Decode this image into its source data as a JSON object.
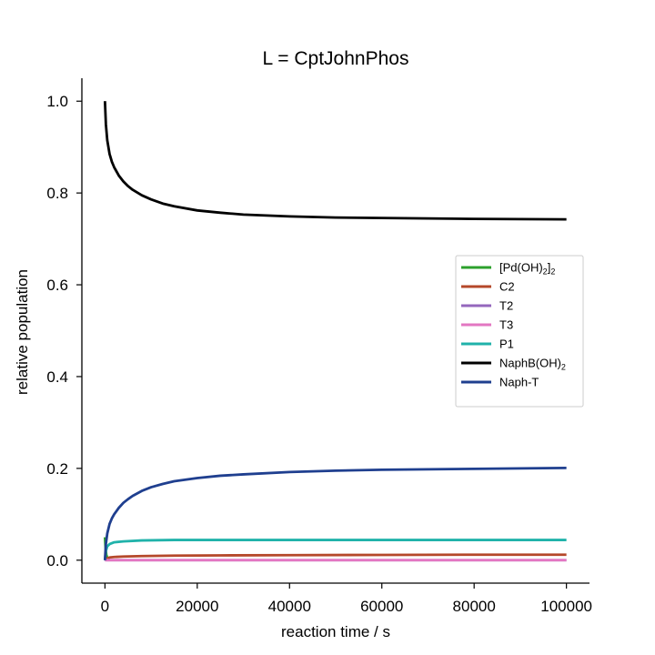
{
  "chart_data": {
    "type": "line",
    "title": "L = CptJohnPhos",
    "xlabel": "reaction time / s",
    "ylabel": "relative population",
    "xlim": [
      -5000,
      105000
    ],
    "ylim": [
      -0.05,
      1.05
    ],
    "xticks": [
      0,
      20000,
      40000,
      60000,
      80000,
      100000
    ],
    "yticks": [
      0.0,
      0.2,
      0.4,
      0.6,
      0.8,
      1.0
    ],
    "xtick_labels": [
      "0",
      "20000",
      "40000",
      "60000",
      "80000",
      "100000"
    ],
    "ytick_labels": [
      "0.0",
      "0.2",
      "0.4",
      "0.6",
      "0.8",
      "1.0"
    ],
    "grid": false,
    "legend_position": "center-right",
    "legend_entries": [
      {
        "label": "[Pd(OH)",
        "sub1": "2",
        "mid": "]",
        "sub2": "2"
      },
      {
        "label": "C2"
      },
      {
        "label": "T2"
      },
      {
        "label": "T3"
      },
      {
        "label": "P1"
      },
      {
        "label": "NaphB(OH)",
        "sub1": "2"
      },
      {
        "label": "Naph-T"
      }
    ],
    "series": [
      {
        "name": "[Pd(OH)2]2",
        "color": "#2ca02c",
        "x": [
          0,
          100,
          200,
          300,
          500,
          700,
          1000
        ],
        "y": [
          0.05,
          0.032,
          0.02,
          0.012,
          0.005,
          0.002,
          0.0
        ]
      },
      {
        "name": "C2",
        "color": "#b5482a",
        "x": [
          0,
          500,
          1000,
          2000,
          4000,
          8000,
          15000,
          25000,
          40000,
          60000,
          80000,
          100000
        ],
        "y": [
          0.0,
          0.004,
          0.006,
          0.007,
          0.008,
          0.009,
          0.01,
          0.0105,
          0.011,
          0.0115,
          0.012,
          0.012
        ]
      },
      {
        "name": "T2",
        "color": "#9467bd",
        "x": [
          0,
          100000
        ],
        "y": [
          0.0,
          0.0
        ]
      },
      {
        "name": "T3",
        "color": "#e377c2",
        "x": [
          0,
          100000
        ],
        "y": [
          0.0,
          0.0
        ]
      },
      {
        "name": "P1",
        "color": "#20b2aa",
        "x": [
          0,
          200,
          500,
          1000,
          2000,
          4000,
          8000,
          15000,
          25000,
          40000,
          60000,
          80000,
          100000
        ],
        "y": [
          0.0,
          0.02,
          0.03,
          0.035,
          0.039,
          0.041,
          0.043,
          0.044,
          0.044,
          0.044,
          0.044,
          0.044,
          0.044
        ]
      },
      {
        "name": "NaphB(OH)2",
        "color": "#000000",
        "x": [
          0,
          200,
          500,
          1000,
          1500,
          2000,
          3000,
          4000,
          5000,
          6000,
          8000,
          10000,
          12500,
          15000,
          20000,
          25000,
          30000,
          40000,
          50000,
          60000,
          70000,
          80000,
          90000,
          100000
        ],
        "y": [
          1.0,
          0.95,
          0.915,
          0.885,
          0.868,
          0.856,
          0.838,
          0.825,
          0.815,
          0.807,
          0.795,
          0.786,
          0.777,
          0.771,
          0.762,
          0.757,
          0.753,
          0.749,
          0.7465,
          0.7455,
          0.7445,
          0.7435,
          0.743,
          0.7425
        ]
      },
      {
        "name": "Naph-T",
        "color": "#1f3f8f",
        "x": [
          0,
          200,
          500,
          1000,
          1500,
          2000,
          3000,
          4000,
          5000,
          6000,
          8000,
          10000,
          12500,
          15000,
          20000,
          25000,
          30000,
          40000,
          50000,
          60000,
          70000,
          80000,
          90000,
          100000
        ],
        "y": [
          0.0,
          0.035,
          0.058,
          0.079,
          0.091,
          0.1,
          0.114,
          0.125,
          0.133,
          0.14,
          0.151,
          0.159,
          0.166,
          0.172,
          0.179,
          0.184,
          0.187,
          0.192,
          0.195,
          0.197,
          0.198,
          0.199,
          0.2,
          0.201
        ]
      }
    ]
  }
}
